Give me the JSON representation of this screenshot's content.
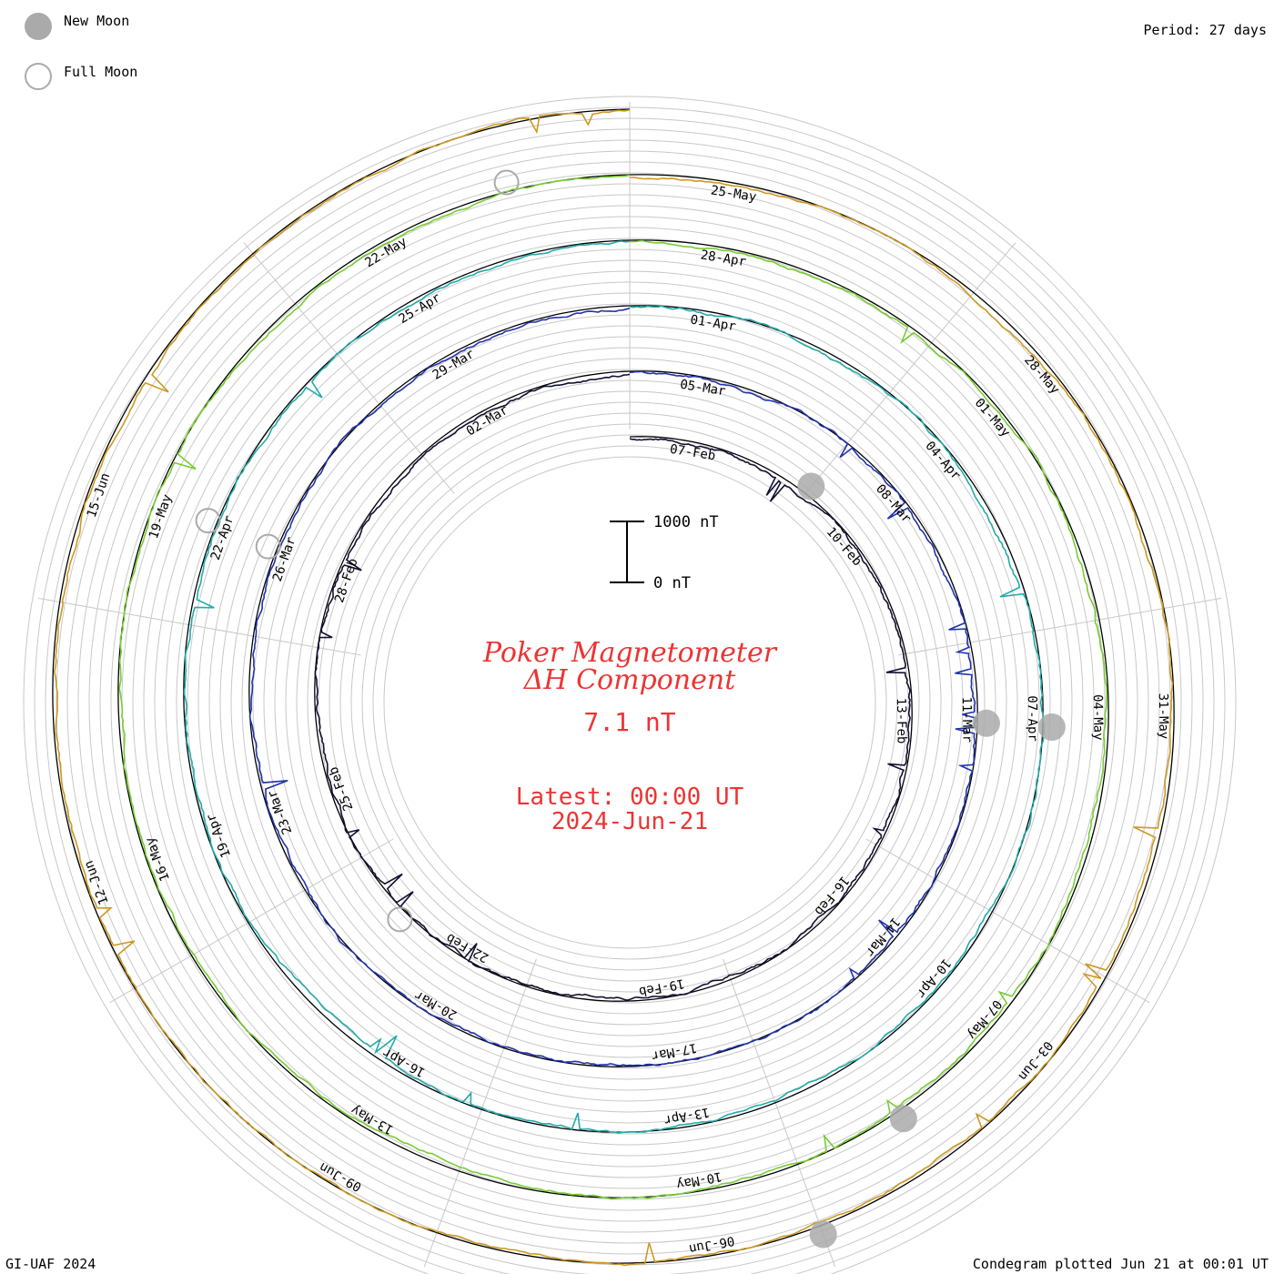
{
  "legend": {
    "new_moon": {
      "label": "New Moon",
      "color": "#aaaaaa"
    },
    "full_moon": {
      "label": "Full Moon",
      "color": "#aaaaaa"
    }
  },
  "period_label": "Period: 27 days",
  "footer": {
    "left": "GI-UAF 2024",
    "right": "Condegram plotted Jun 21 at 00:01 UT"
  },
  "title": {
    "line1": "Poker Magnetometer",
    "line2": "ΔH Component",
    "value": "7.1 nT",
    "latest_line1": "Latest: 00:00 UT",
    "latest_line2": "2024-Jun-21",
    "color": "#ee3333"
  },
  "scale_bar": {
    "top_label": "1000 nT",
    "bottom_label": "0 nT"
  },
  "chart_data": {
    "type": "line",
    "title": "Poker Magnetometer ΔH Component",
    "period_days": 27,
    "current_value_nT": 7.1,
    "latest": "00:00 UT 2024-Jun-21",
    "scale_nT": [
      0,
      1000
    ],
    "rings": [
      {
        "color": "#111133",
        "date_labels": [
          "07-Feb",
          "10-Feb",
          "13-Feb",
          "16-Feb",
          "19-Feb",
          "22-Feb",
          "25-Feb",
          "28-Feb",
          "02-Mar"
        ]
      },
      {
        "color": "#2233aa",
        "date_labels": [
          "05-Mar",
          "08-Mar",
          "11-Mar",
          "14-Mar",
          "17-Mar",
          "20-Mar",
          "23-Mar",
          "26-Mar",
          "29-Mar"
        ]
      },
      {
        "color": "#22aaaa",
        "date_labels": [
          "01-Apr",
          "04-Apr",
          "07-Apr",
          "10-Apr",
          "13-Apr",
          "16-Apr",
          "19-Apr",
          "22-Apr",
          "25-Apr"
        ]
      },
      {
        "color": "#77cc33",
        "date_labels": [
          "28-Apr",
          "01-May",
          "04-May",
          "07-May",
          "10-May",
          "13-May",
          "16-May",
          "19-May",
          "22-May"
        ]
      },
      {
        "color": "#cc9922",
        "date_labels": [
          "25-May",
          "28-May",
          "31-May",
          "03-Jun",
          "06-Jun",
          "09-Jun",
          "12-Jun",
          "15-Jun"
        ]
      },
      {
        "color": "#cc2222",
        "date_labels": []
      }
    ],
    "new_moon_dates": [
      "10-Feb",
      "10-Mar",
      "08-Apr",
      "08-May",
      "06-Jun"
    ],
    "full_moon_dates": [
      "24-Feb",
      "25-Mar",
      "23-Apr",
      "23-May"
    ]
  }
}
